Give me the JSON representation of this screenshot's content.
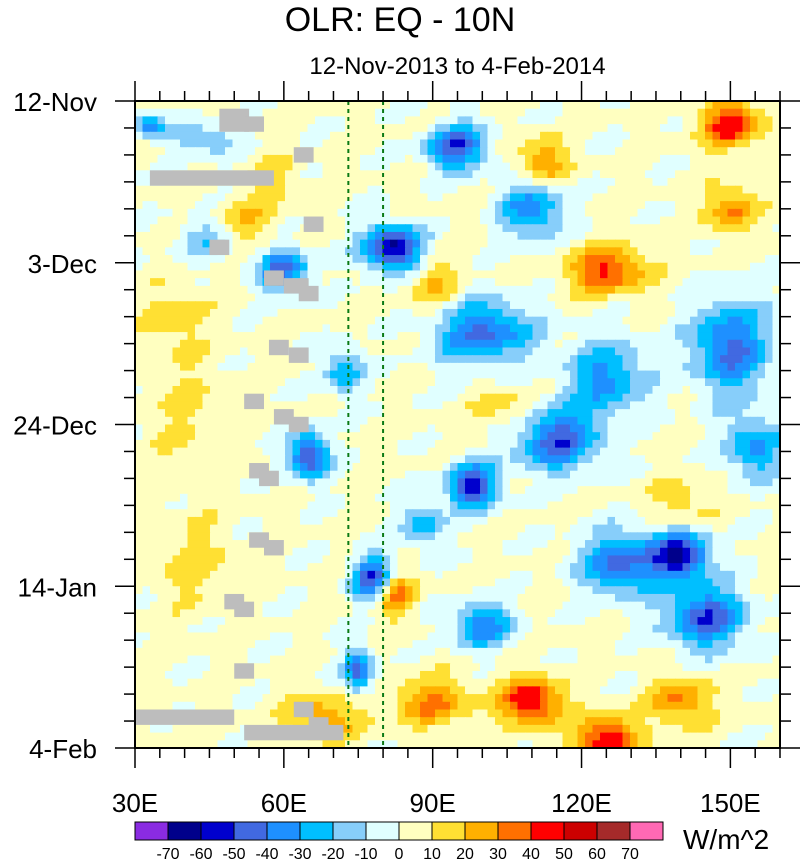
{
  "chart_data": {
    "type": "heatmap",
    "title": "OLR: EQ - 10N",
    "subtitle": "12-Nov-2013 to 4-Feb-2014",
    "x_axis": {
      "label": "",
      "ticks": [
        "30E",
        "60E",
        "90E",
        "120E",
        "150E"
      ],
      "tick_values": [
        30,
        60,
        90,
        120,
        150
      ],
      "range": [
        30,
        160
      ]
    },
    "y_axis": {
      "label": "",
      "ticks": [
        "12-Nov",
        "3-Dec",
        "24-Dec",
        "14-Jan",
        "4-Feb"
      ],
      "tick_days": [
        0,
        21,
        42,
        63,
        84
      ],
      "range_days": [
        0,
        84
      ],
      "direction": "time increases downward"
    },
    "reference_lines_lon": [
      73,
      80
    ],
    "colorbar": {
      "units": "W/m^2",
      "levels": [
        -70,
        -60,
        -50,
        -40,
        -30,
        -20,
        -10,
        0,
        10,
        20,
        30,
        40,
        50,
        60,
        70
      ],
      "colors": [
        "#8a2be2",
        "#00008b",
        "#0000cd",
        "#4169e1",
        "#1e90ff",
        "#00bfff",
        "#87cefa",
        "#e0ffff",
        "#ffffc0",
        "#ffe033",
        "#ffb000",
        "#ff7000",
        "#ff0000",
        "#cc0000",
        "#a52a2a",
        "#ff69b4"
      ]
    },
    "missing_color": "#bdbdbd",
    "features": [
      {
        "lon": 82,
        "day": 19,
        "value": -65,
        "note": "strong convection near 80E early Dec"
      },
      {
        "lon": 140,
        "day": 59,
        "value": -60,
        "note": "convection 130-150E mid Jan"
      },
      {
        "lon": 110,
        "day": 78,
        "value": 50,
        "note": "dry anomaly late Jan"
      },
      {
        "lon": 125,
        "day": 83,
        "value": 50,
        "note": "dry anomaly early Feb"
      },
      {
        "lon": 150,
        "day": 3,
        "value": 45,
        "note": "dry anomaly mid Nov"
      }
    ]
  }
}
